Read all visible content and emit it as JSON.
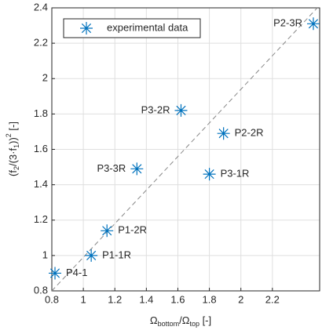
{
  "chart_data": {
    "type": "scatter",
    "x_label": [
      "Ω",
      "bottom",
      "/Ω",
      "top",
      " [-]"
    ],
    "y_label": [
      "(f",
      "2",
      "/(3·f",
      "1",
      "))",
      "2",
      " [-]"
    ],
    "series": [
      {
        "name": "experimental data",
        "color": "#0072bd",
        "x": [
          0.82,
          1.05,
          1.15,
          1.34,
          1.62,
          1.89,
          1.8,
          2.46
        ],
        "values": [
          0.9,
          1.0,
          1.14,
          1.49,
          1.82,
          1.69,
          1.46,
          2.31
        ],
        "point_labels": [
          "P4-1",
          "P1-1R",
          "P1-2R",
          "P3-3R",
          "P3-2R",
          "P2-2R",
          "P3-1R",
          "P2-3R"
        ]
      }
    ],
    "xlim": [
      0.8,
      2.5
    ],
    "xticks": [
      0.8,
      1,
      1.2,
      1.4,
      1.6,
      1.8,
      2,
      2.2
    ],
    "ylim": [
      0.8,
      2.4
    ],
    "yticks": [
      0.8,
      1,
      1.2,
      1.4,
      1.6,
      1.8,
      2,
      2.2,
      2.4
    ],
    "grid": true,
    "legend": "top-left"
  }
}
